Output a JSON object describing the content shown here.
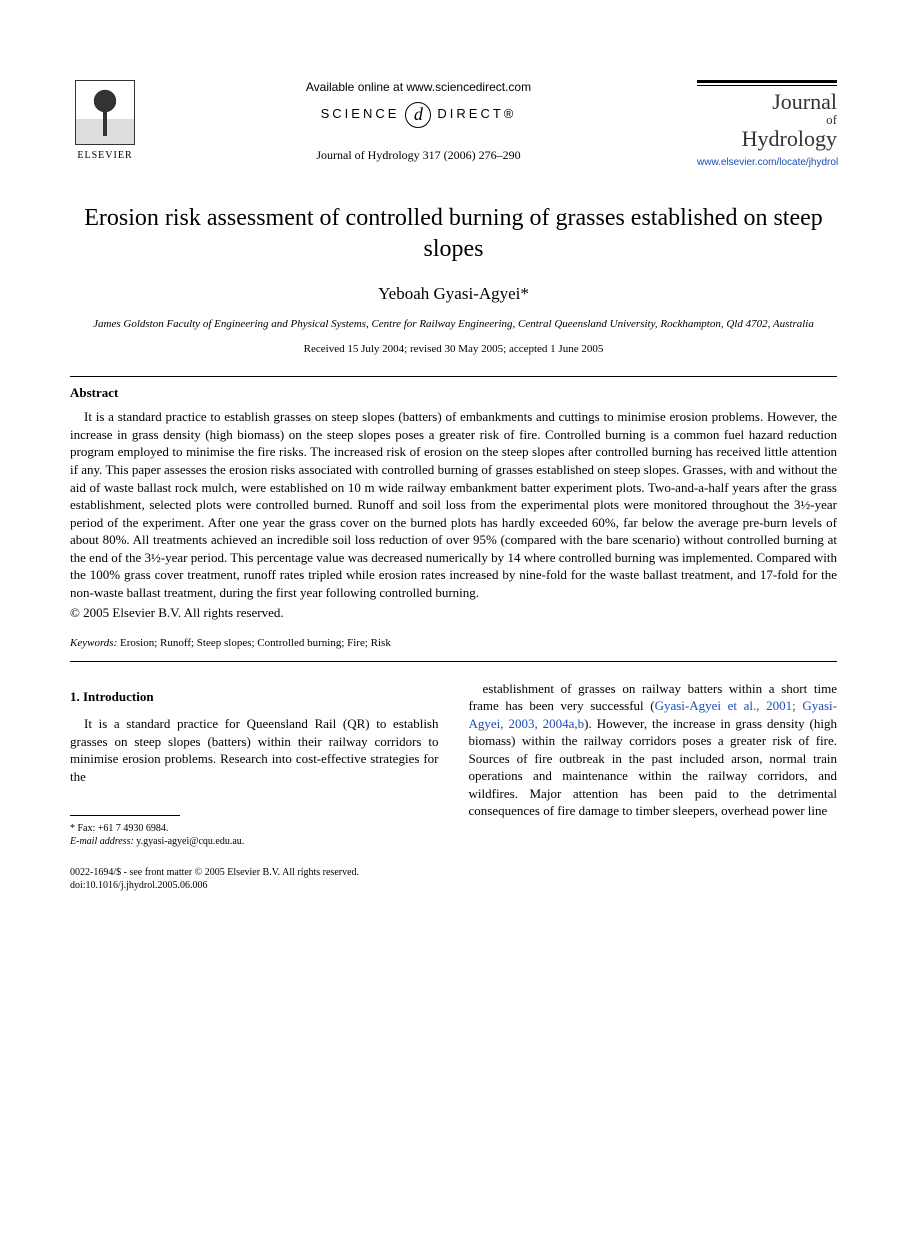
{
  "header": {
    "elsevier": "ELSEVIER",
    "available_online": "Available online at www.sciencedirect.com",
    "sciencedirect_left": "SCIENCE",
    "sciencedirect_d": "d",
    "sciencedirect_right": "DIRECT®",
    "journal_ref": "Journal of Hydrology 317 (2006) 276–290",
    "journal_name_1": "Journal",
    "journal_name_of": "of",
    "journal_name_2": "Hydrology",
    "journal_link": "www.elsevier.com/locate/jhydrol"
  },
  "article": {
    "title": "Erosion risk assessment of controlled burning of grasses established on steep slopes",
    "author": "Yeboah Gyasi-Agyei*",
    "affiliation": "James Goldston Faculty of Engineering and Physical Systems, Centre for Railway Engineering, Central Queensland University, Rockhampton, Qld 4702, Australia",
    "dates": "Received 15 July 2004; revised 30 May 2005; accepted 1 June 2005"
  },
  "abstract": {
    "heading": "Abstract",
    "body": "It is a standard practice to establish grasses on steep slopes (batters) of embankments and cuttings to minimise erosion problems. However, the increase in grass density (high biomass) on the steep slopes poses a greater risk of fire. Controlled burning is a common fuel hazard reduction program employed to minimise the fire risks. The increased risk of erosion on the steep slopes after controlled burning has received little attention if any. This paper assesses the erosion risks associated with controlled burning of grasses established on steep slopes. Grasses, with and without the aid of waste ballast rock mulch, were established on 10 m wide railway embankment batter experiment plots. Two-and-a-half years after the grass establishment, selected plots were controlled burned. Runoff and soil loss from the experimental plots were monitored throughout the 3½-year period of the experiment. After one year the grass cover on the burned plots has hardly exceeded 60%, far below the average pre-burn levels of about 80%. All treatments achieved an incredible soil loss reduction of over 95% (compared with the bare scenario) without controlled burning at the end of the 3½-year period. This percentage value was decreased numerically by 14 where controlled burning was implemented. Compared with the 100% grass cover treatment, runoff rates tripled while erosion rates increased by nine-fold for the waste ballast treatment, and 17-fold for the non-waste ballast treatment, during the first year following controlled burning.",
    "copyright": "© 2005 Elsevier B.V. All rights reserved."
  },
  "keywords": {
    "label": "Keywords:",
    "text": " Erosion; Runoff; Steep slopes; Controlled burning; Fire; Risk"
  },
  "intro": {
    "heading": "1. Introduction",
    "col1": "It is a standard practice for Queensland Rail (QR) to establish grasses on steep slopes (batters) within their railway corridors to minimise erosion problems. Research into cost-effective strategies for the",
    "col2_pre": "establishment of grasses on railway batters within a short time frame has been very successful (",
    "col2_cite": "Gyasi-Agyei et al., 2001; Gyasi-Agyei, 2003, 2004a,b",
    "col2_post": "). However, the increase in grass density (high biomass) within the railway corridors poses a greater risk of fire. Sources of fire outbreak in the past included arson, normal train operations and maintenance within the railway corridors, and wildfires. Major attention has been paid to the detrimental consequences of fire damage to timber sleepers, overhead power line"
  },
  "footnotes": {
    "fax": "* Fax: +61 7 4930 6984.",
    "email_label": "E-mail address:",
    "email": " y.gyasi-agyei@cqu.edu.au."
  },
  "bottom": {
    "line1": "0022-1694/$ - see front matter © 2005 Elsevier B.V. All rights reserved.",
    "line2": "doi:10.1016/j.jhydrol.2005.06.006"
  },
  "style": {
    "link_color": "#1a4db5",
    "text_color": "#000000",
    "bg_color": "#ffffff",
    "body_font_size": 13,
    "title_font_size": 24,
    "author_font_size": 17
  }
}
